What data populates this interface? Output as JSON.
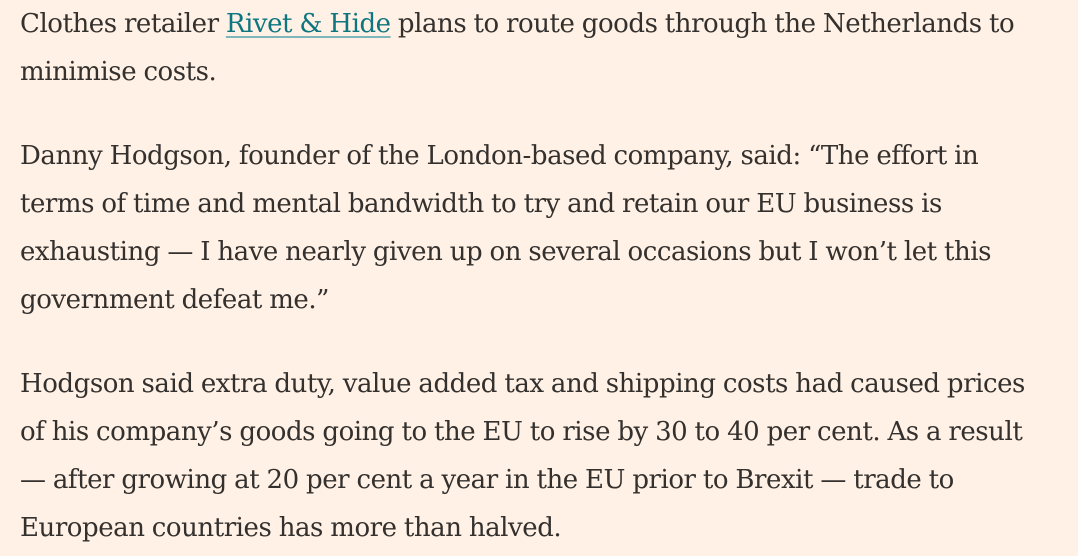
{
  "article": {
    "paragraph_1": {
      "before_link": "Clothes retailer ",
      "link_text": "Rivet & Hide",
      "after_link_line1": " plans to route goods through the Netherlands to",
      "line2": "minimise costs."
    },
    "paragraph_2": {
      "lines": [
        "Danny Hodgson, founder of the London-based company, said: “The effort in",
        "terms of time and mental bandwidth to try and retain our EU business is",
        "exhausting — I have nearly given up on several occasions but I won’t let this",
        "government defeat me.”"
      ]
    },
    "paragraph_3": {
      "lines": [
        "Hodgson said extra duty, value added tax and shipping costs had caused prices",
        "of his company’s goods going to the EU to rise by 30 to 40 per cent. As a result",
        "— after growing at 20 per cent a year in the EU prior to Brexit — trade to",
        "European countries has more than halved."
      ]
    }
  },
  "colors": {
    "background": "#FFF1E5",
    "text": "#33302E",
    "link": "#0D7680"
  }
}
